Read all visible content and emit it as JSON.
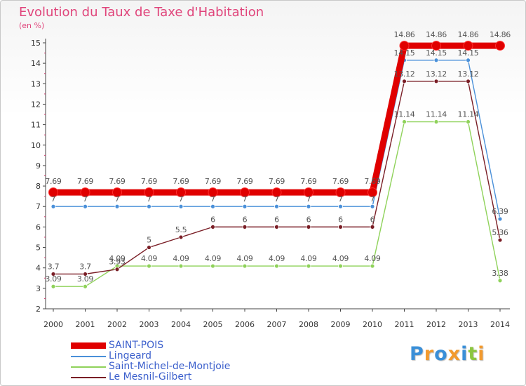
{
  "title": "Evolution du Taux de Taxe d'Habitation",
  "unit_label": "(en %)",
  "logo": {
    "text": "Proxiti",
    "letters": [
      {
        "ch": "P",
        "color": "#3a8fd8"
      },
      {
        "ch": "r",
        "color": "#f29a2e"
      },
      {
        "ch": "o",
        "color": "#3a8fd8"
      },
      {
        "ch": "x",
        "color": "#f29a2e"
      },
      {
        "ch": "i",
        "color": "#3a8fd8"
      },
      {
        "ch": "t",
        "color": "#8cc63f"
      },
      {
        "ch": "i",
        "color": "#f29a2e"
      }
    ]
  },
  "chart_data": {
    "type": "line",
    "title": "Evolution du Taux de Taxe d'Habitation",
    "ylabel": "(en %)",
    "xlabel": "",
    "categories": [
      "2000",
      "2001",
      "2002",
      "2003",
      "2004",
      "2005",
      "2006",
      "2007",
      "2008",
      "2009",
      "2010",
      "2011",
      "2012",
      "2013",
      "2014"
    ],
    "ylim": [
      2,
      15
    ],
    "yticks": [
      2,
      3,
      4,
      5,
      6,
      7,
      8,
      9,
      10,
      11,
      12,
      13,
      14,
      15
    ],
    "grid": false,
    "legend_position": "bottom-left",
    "series": [
      {
        "name": "SAINT-POIS",
        "color": "#e00000",
        "bold": true,
        "values": [
          7.69,
          7.69,
          7.69,
          7.69,
          7.69,
          7.69,
          7.69,
          7.69,
          7.69,
          7.69,
          7.69,
          14.86,
          14.86,
          14.86,
          14.86
        ],
        "labels": [
          "7.69",
          "7.69",
          "7.69",
          "7.69",
          "7.69",
          "7.69",
          "7.69",
          "7.69",
          "7.69",
          "7.69",
          "7.69",
          "14.86",
          "14.86",
          "14.86",
          "14.86"
        ]
      },
      {
        "name": "Lingeard",
        "color": "#4a90d9",
        "bold": false,
        "values": [
          7,
          7,
          7,
          7,
          7,
          7,
          7,
          7,
          7,
          7,
          7,
          14.15,
          14.15,
          14.15,
          6.39
        ],
        "labels": [
          "7",
          "7",
          "7",
          "7",
          "7",
          "7",
          "7",
          "7",
          "7",
          "7",
          "7",
          "14.15",
          "14.15",
          "14.15",
          "6.39"
        ]
      },
      {
        "name": "Saint-Michel-de-Montjoie",
        "color": "#8fd25a",
        "bold": false,
        "values": [
          3.09,
          3.09,
          4.09,
          4.09,
          4.09,
          4.09,
          4.09,
          4.09,
          4.09,
          4.09,
          4.09,
          11.14,
          11.14,
          11.14,
          3.38
        ],
        "labels": [
          "3.09",
          "3.09",
          "4.09",
          "4.09",
          "4.09",
          "4.09",
          "4.09",
          "4.09",
          "4.09",
          "4.09",
          "4.09",
          "11.14",
          "11.14",
          "11.14",
          "3.38"
        ]
      },
      {
        "name": "Le Mesnil-Gilbert",
        "color": "#7a1e26",
        "bold": false,
        "values": [
          3.7,
          3.7,
          3.93,
          5,
          5.5,
          6,
          6,
          6,
          6,
          6,
          6,
          13.12,
          13.12,
          13.12,
          5.36
        ],
        "labels": [
          "3.7",
          "3.7",
          "3.93",
          "5",
          "5.5",
          "6",
          "6",
          "6",
          "6",
          "6",
          "6",
          "13.12",
          "13.12",
          "13.12",
          "5.36"
        ]
      }
    ]
  }
}
